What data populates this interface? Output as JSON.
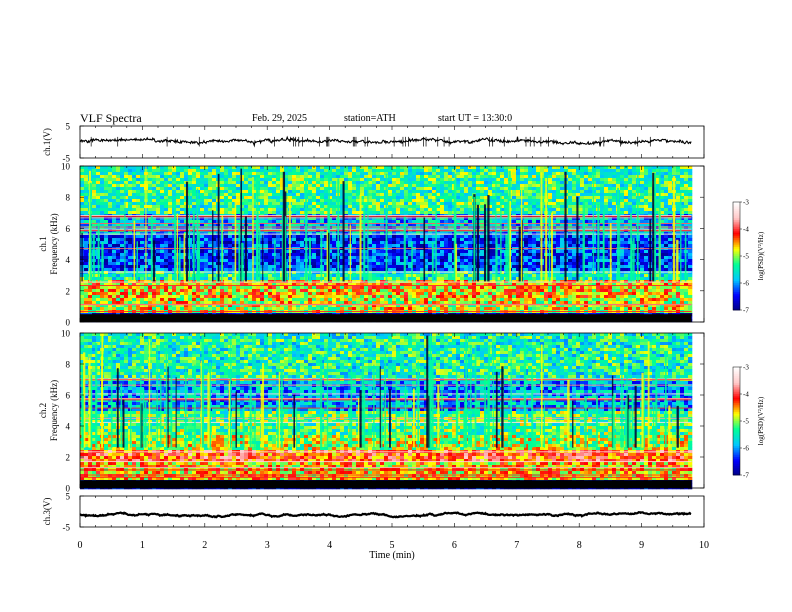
{
  "header": {
    "title": "VLF Spectra",
    "date": "Feb. 29, 2025",
    "station": "station=ATH",
    "start_ut": "start UT =   13:30:0"
  },
  "chart_data": [
    {
      "type": "line",
      "ylabel": "ch.1(V)",
      "ylim": [
        -5,
        5
      ],
      "yticks": [
        "5",
        "-5"
      ],
      "baseline_v": 0.2,
      "noise_amplitude_v": 1.2,
      "color": "#000000"
    },
    {
      "type": "heatmap",
      "ylabel_line1": "ch.1",
      "ylabel_line2": "Frequency (kHz)",
      "ylim": [
        0,
        10
      ],
      "yticks": [
        "0",
        "2",
        "4",
        "6",
        "8",
        "10"
      ],
      "colorbar_label": "log(PSD)(V²/Hz)",
      "colorbar_ticks": [
        "-3",
        "-4",
        "-5",
        "-6",
        "-7"
      ],
      "clim": [
        -7,
        -3
      ],
      "colormap": [
        "#000080",
        "#0000ff",
        "#00c8ff",
        "#00ff96",
        "#ffff00",
        "#ff0000",
        "#ffc8c8",
        "#ffffff"
      ],
      "bands_khz": [
        {
          "f_lo": 0.0,
          "f_hi": 0.5,
          "level": -6.8
        },
        {
          "f_lo": 0.5,
          "f_hi": 1.5,
          "level": -4.8
        },
        {
          "f_lo": 1.5,
          "f_hi": 2.6,
          "level": -4.6
        },
        {
          "f_lo": 2.6,
          "f_hi": 3.2,
          "level": -5.4
        },
        {
          "f_lo": 3.2,
          "f_hi": 5.6,
          "level": -6.3
        },
        {
          "f_lo": 5.6,
          "f_hi": 7.0,
          "level": -5.8
        },
        {
          "f_lo": 7.0,
          "f_hi": 10.0,
          "level": -5.3
        }
      ]
    },
    {
      "type": "heatmap",
      "ylabel_line1": "ch.2",
      "ylabel_line2": "Frequency (kHz)",
      "ylim": [
        0,
        10
      ],
      "yticks": [
        "0",
        "2",
        "4",
        "6",
        "8",
        "10"
      ],
      "colorbar_label": "log(PSD)(V²/Hz)",
      "colorbar_ticks": [
        "-3",
        "-4",
        "-5",
        "-6",
        "-7"
      ],
      "clim": [
        -7,
        -3
      ],
      "colormap": [
        "#000080",
        "#0000ff",
        "#00c8ff",
        "#00ff96",
        "#ffff00",
        "#ff0000",
        "#ffc8c8",
        "#ffffff"
      ],
      "bands_khz": [
        {
          "f_lo": 0.0,
          "f_hi": 0.5,
          "level": -6.8
        },
        {
          "f_lo": 0.5,
          "f_hi": 1.6,
          "level": -4.6
        },
        {
          "f_lo": 1.6,
          "f_hi": 2.4,
          "level": -4.2
        },
        {
          "f_lo": 2.4,
          "f_hi": 3.4,
          "level": -4.9
        },
        {
          "f_lo": 3.4,
          "f_hi": 5.0,
          "level": -5.2
        },
        {
          "f_lo": 5.0,
          "f_hi": 7.0,
          "level": -5.9
        },
        {
          "f_lo": 7.0,
          "f_hi": 10.0,
          "level": -5.4
        }
      ]
    },
    {
      "type": "line",
      "ylabel": "ch.3(V)",
      "ylim": [
        -5,
        5
      ],
      "yticks": [
        "5",
        "-5"
      ],
      "baseline_v": -1.0,
      "noise_amplitude_v": 0.3,
      "color": "#000000"
    }
  ],
  "x_axis": {
    "label": "Time (min)",
    "xlim": [
      0,
      10
    ],
    "ticks": [
      "0",
      "1",
      "2",
      "3",
      "4",
      "5",
      "6",
      "7",
      "8",
      "9",
      "10"
    ],
    "data_end_min": 9.8
  }
}
